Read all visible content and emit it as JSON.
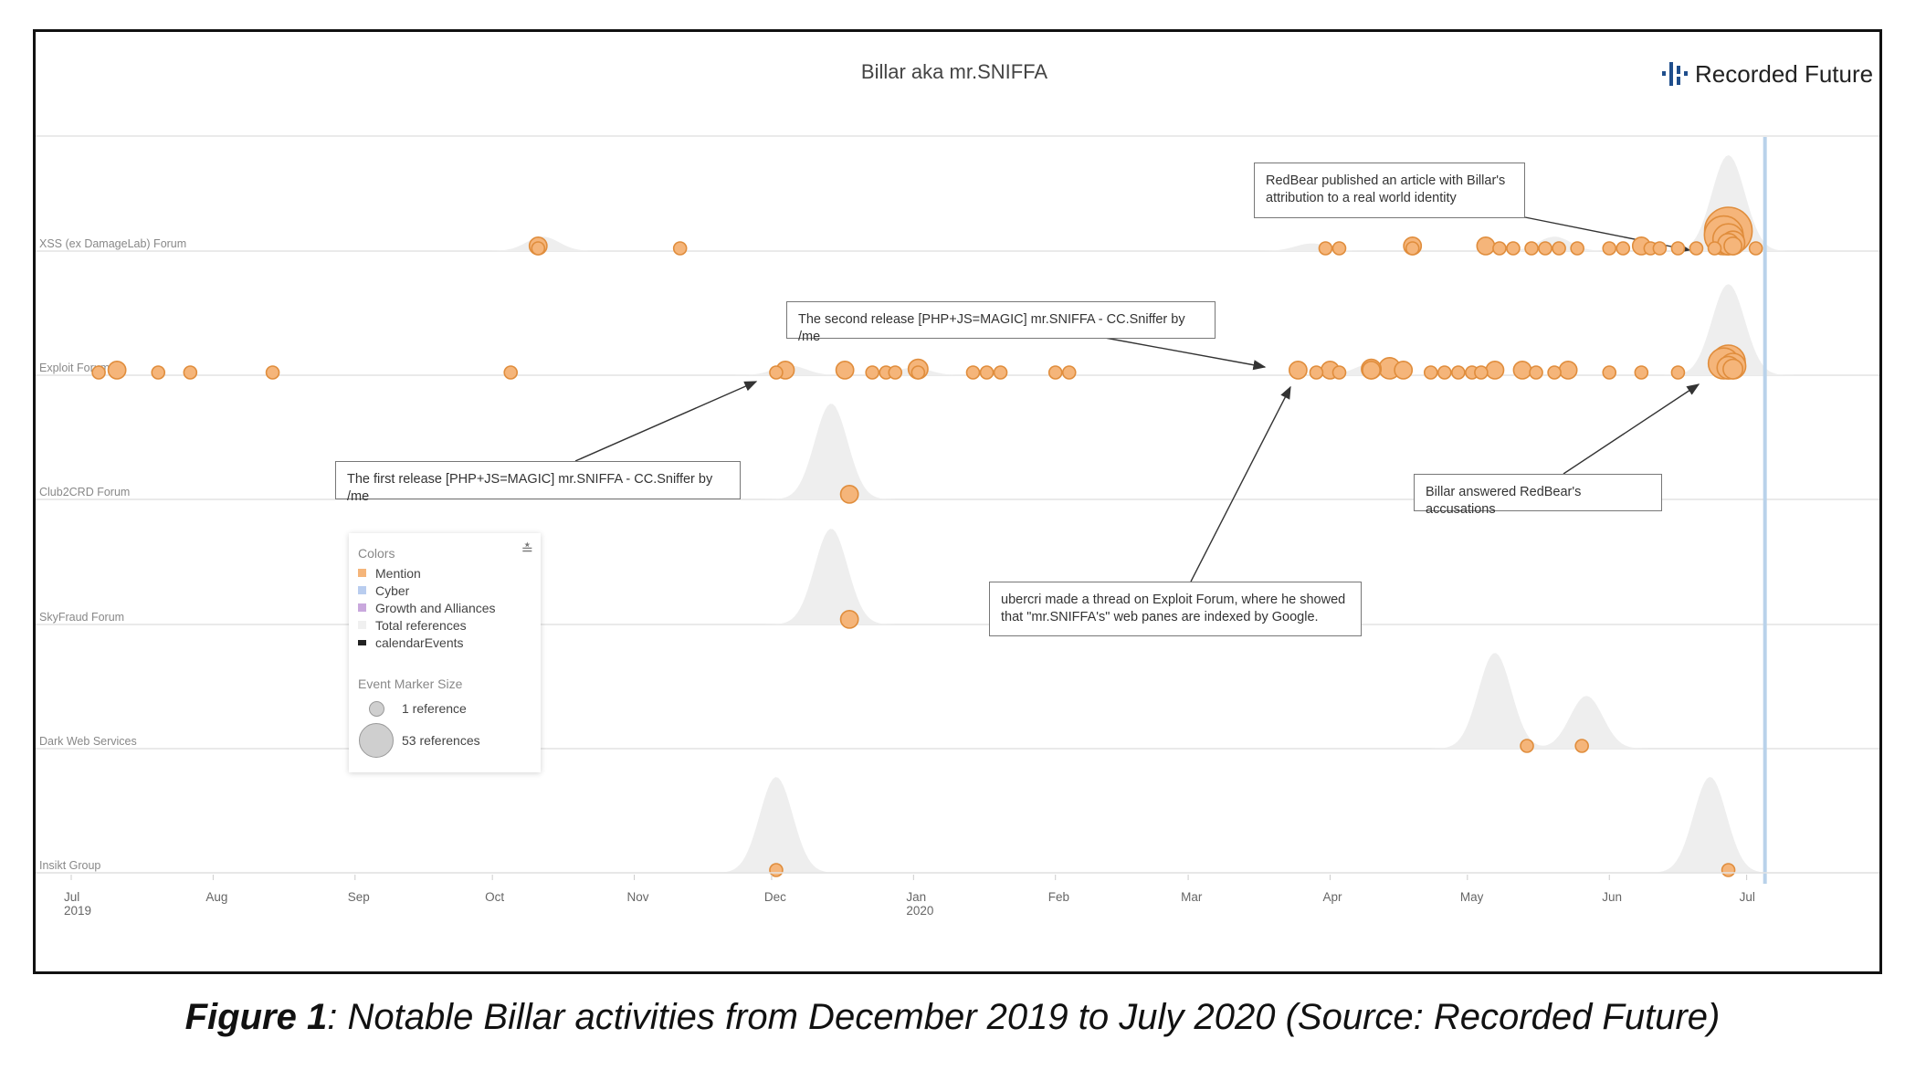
{
  "chart_title": "Billar aka mr.SNIFFA",
  "brand": {
    "name": "Recorded Future",
    "color": "#1f4e8c"
  },
  "caption": {
    "label": "Figure 1",
    "text": ": Notable Billar activities from December 2019 to July 2020 (Source: Recorded Future)"
  },
  "chart_data": {
    "type": "scatter",
    "title": "Billar aka mr.SNIFFA",
    "x_range": [
      "2019-07-01",
      "2020-07-31"
    ],
    "x_ticks": [
      {
        "label": "Jul",
        "sub": "2019",
        "date": "2019-07-01"
      },
      {
        "label": "Aug",
        "sub": "",
        "date": "2019-08-01"
      },
      {
        "label": "Sep",
        "sub": "",
        "date": "2019-09-01"
      },
      {
        "label": "Oct",
        "sub": "",
        "date": "2019-10-01"
      },
      {
        "label": "Nov",
        "sub": "",
        "date": "2019-11-01"
      },
      {
        "label": "Dec",
        "sub": "",
        "date": "2019-12-01"
      },
      {
        "label": "Jan",
        "sub": "2020",
        "date": "2020-01-01"
      },
      {
        "label": "Feb",
        "sub": "",
        "date": "2020-02-01"
      },
      {
        "label": "Mar",
        "sub": "",
        "date": "2020-03-01"
      },
      {
        "label": "Apr",
        "sub": "",
        "date": "2020-04-01"
      },
      {
        "label": "May",
        "sub": "",
        "date": "2020-05-01"
      },
      {
        "label": "Jun",
        "sub": "",
        "date": "2020-06-01"
      },
      {
        "label": "Jul",
        "sub": "",
        "date": "2020-07-01"
      }
    ],
    "current_date": "2020-07-05",
    "lanes": [
      {
        "name": "XSS (ex DamageLab) Forum",
        "density": [
          [
            "2019-10-12",
            0.15
          ],
          [
            "2020-03-28",
            0.08
          ],
          [
            "2020-05-20",
            0.15
          ],
          [
            "2020-06-27",
            1.0
          ]
        ],
        "events": [
          [
            "2019-10-11",
            1
          ],
          [
            "2019-10-11",
            2
          ],
          [
            "2019-11-11",
            1
          ],
          [
            "2020-03-31",
            1
          ],
          [
            "2020-04-03",
            1
          ],
          [
            "2020-04-19",
            2
          ],
          [
            "2020-04-19",
            1
          ],
          [
            "2020-05-05",
            2
          ],
          [
            "2020-05-08",
            1
          ],
          [
            "2020-05-11",
            1
          ],
          [
            "2020-05-15",
            1
          ],
          [
            "2020-05-18",
            1
          ],
          [
            "2020-05-21",
            1
          ],
          [
            "2020-05-25",
            1
          ],
          [
            "2020-06-01",
            1
          ],
          [
            "2020-06-04",
            1
          ],
          [
            "2020-06-08",
            2
          ],
          [
            "2020-06-10",
            1
          ],
          [
            "2020-06-12",
            1
          ],
          [
            "2020-06-16",
            1
          ],
          [
            "2020-06-20",
            1
          ],
          [
            "2020-06-24",
            1
          ],
          [
            "2020-06-27",
            53
          ],
          [
            "2020-06-26",
            30
          ],
          [
            "2020-06-27",
            15
          ],
          [
            "2020-06-28",
            6
          ],
          [
            "2020-06-27",
            4
          ],
          [
            "2020-06-28",
            2
          ],
          [
            "2020-07-03",
            1
          ]
        ]
      },
      {
        "name": "Exploit Forum",
        "density": [
          [
            "2019-12-05",
            0.1
          ],
          [
            "2020-01-01",
            0.08
          ],
          [
            "2020-04-10",
            0.12
          ],
          [
            "2020-06-27",
            0.95
          ]
        ],
        "events": [
          [
            "2019-07-07",
            1
          ],
          [
            "2019-07-11",
            2
          ],
          [
            "2019-07-20",
            1
          ],
          [
            "2019-07-27",
            1
          ],
          [
            "2019-08-14",
            1
          ],
          [
            "2019-10-05",
            1
          ],
          [
            "2019-12-02",
            1
          ],
          [
            "2019-12-04",
            2
          ],
          [
            "2019-12-17",
            2
          ],
          [
            "2019-12-23",
            1
          ],
          [
            "2019-12-26",
            1
          ],
          [
            "2019-12-28",
            1
          ],
          [
            "2020-01-02",
            1
          ],
          [
            "2020-01-02",
            3
          ],
          [
            "2020-01-14",
            1
          ],
          [
            "2020-01-17",
            1
          ],
          [
            "2020-01-20",
            1
          ],
          [
            "2020-02-01",
            1
          ],
          [
            "2020-02-04",
            1
          ],
          [
            "2020-03-25",
            2
          ],
          [
            "2020-03-29",
            1
          ],
          [
            "2020-04-01",
            2
          ],
          [
            "2020-04-03",
            1
          ],
          [
            "2020-04-10",
            3
          ],
          [
            "2020-04-10",
            2
          ],
          [
            "2020-04-14",
            4
          ],
          [
            "2020-04-17",
            2
          ],
          [
            "2020-04-23",
            1
          ],
          [
            "2020-04-26",
            1
          ],
          [
            "2020-04-29",
            1
          ],
          [
            "2020-05-02",
            1
          ],
          [
            "2020-05-04",
            1
          ],
          [
            "2020-05-07",
            2
          ],
          [
            "2020-05-13",
            2
          ],
          [
            "2020-05-16",
            1
          ],
          [
            "2020-05-20",
            1
          ],
          [
            "2020-05-23",
            2
          ],
          [
            "2020-06-01",
            1
          ],
          [
            "2020-06-08",
            1
          ],
          [
            "2020-06-16",
            1
          ],
          [
            "2020-06-27",
            20
          ],
          [
            "2020-06-26",
            15
          ],
          [
            "2020-06-28",
            8
          ],
          [
            "2020-06-27",
            5
          ],
          [
            "2020-06-28",
            3
          ]
        ]
      },
      {
        "name": "Club2CRD Forum",
        "density": [
          [
            "2019-12-14",
            1.0
          ]
        ],
        "events": [
          [
            "2019-12-18",
            2
          ]
        ]
      },
      {
        "name": "SkyFraud Forum",
        "density": [
          [
            "2019-12-14",
            1.0
          ]
        ],
        "events": [
          [
            "2019-12-18",
            2
          ]
        ]
      },
      {
        "name": "Dark Web Services",
        "density": [
          [
            "2020-05-07",
            1.0
          ],
          [
            "2020-05-27",
            0.55
          ]
        ],
        "events": [
          [
            "2020-05-14",
            1
          ],
          [
            "2020-05-26",
            1
          ]
        ]
      },
      {
        "name": "Insikt Group",
        "density": [
          [
            "2019-12-02",
            1.0
          ],
          [
            "2020-06-23",
            1.0
          ]
        ],
        "events": [
          [
            "2019-12-02",
            1
          ],
          [
            "2020-06-27",
            1
          ]
        ]
      }
    ],
    "marker_size_range": [
      1,
      53
    ],
    "legend": {
      "colors_title": "Colors",
      "items": [
        {
          "label": "Mention",
          "color": "#f5b57a"
        },
        {
          "label": "Cyber",
          "color": "#b9cdef"
        },
        {
          "label": "Growth and Alliances",
          "color": "#c9a8dd"
        },
        {
          "label": "Total references",
          "color": "#f0f0f0"
        },
        {
          "label": "calendarEvents",
          "color": "#222222"
        }
      ],
      "size_title": "Event Marker Size",
      "size_small": "1 reference",
      "size_large": "53 references"
    },
    "marker_colors": {
      "fill": "#f5b57a",
      "stroke": "#e08d3c"
    },
    "density_color": "#eeeeee",
    "current_line_color": "#b9d2ea"
  },
  "annotations": [
    {
      "id": "redbear",
      "text": "RedBear published an article with Billar's attribution to a real world identity"
    },
    {
      "id": "second",
      "text": "The second release [PHP+JS=MAGIC] mr.SNIFFA - CC.Sniffer by /me"
    },
    {
      "id": "first",
      "text": "The first release [PHP+JS=MAGIC] mr.SNIFFA - CC.Sniffer by /me"
    },
    {
      "id": "billar",
      "text": "Billar answered RedBear's accusations"
    },
    {
      "id": "ubercri",
      "text": "ubercri made a thread on Exploit Forum, where he showed that \"mr.SNIFFA's\" web panes are indexed by Google."
    }
  ]
}
